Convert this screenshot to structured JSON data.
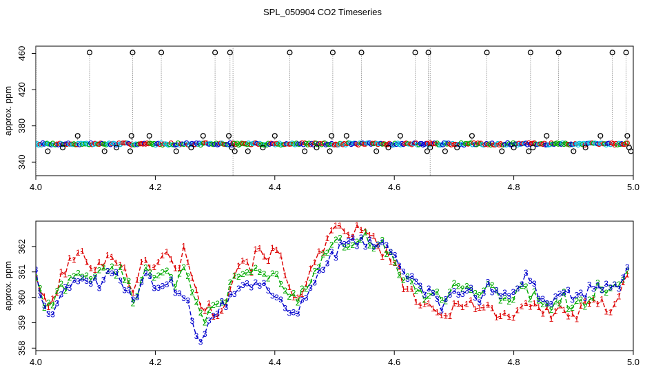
{
  "chart_data": [
    {
      "type": "scatter",
      "title": "SPL_050904  CO2 Timeseries",
      "xlabel": "",
      "ylabel": "approx. ppm",
      "xlim": [
        4.0,
        5.0
      ],
      "ylim": [
        325,
        468
      ],
      "x_ticks": [
        "4.0",
        "4.2",
        "4.4",
        "4.6",
        "4.8",
        "5.0"
      ],
      "y_ticks": [
        "340",
        "380",
        "420",
        "460"
      ],
      "baseline_ppm": 360,
      "spikes": [
        {
          "x": 4.02,
          "y": 352
        },
        {
          "x": 4.045,
          "y": 356
        },
        {
          "x": 4.07,
          "y": 369
        },
        {
          "x": 4.09,
          "y": 461
        },
        {
          "x": 4.115,
          "y": 352
        },
        {
          "x": 4.135,
          "y": 356
        },
        {
          "x": 4.158,
          "y": 352
        },
        {
          "x": 4.16,
          "y": 369
        },
        {
          "x": 4.162,
          "y": 461
        },
        {
          "x": 4.19,
          "y": 369
        },
        {
          "x": 4.21,
          "y": 461
        },
        {
          "x": 4.235,
          "y": 352
        },
        {
          "x": 4.26,
          "y": 356
        },
        {
          "x": 4.28,
          "y": 369
        },
        {
          "x": 4.3,
          "y": 461
        },
        {
          "x": 4.323,
          "y": 369
        },
        {
          "x": 4.325,
          "y": 461
        },
        {
          "x": 4.328,
          "y": 356
        },
        {
          "x": 4.333,
          "y": 352
        },
        {
          "x": 4.355,
          "y": 352
        },
        {
          "x": 4.38,
          "y": 356
        },
        {
          "x": 4.4,
          "y": 369
        },
        {
          "x": 4.425,
          "y": 461
        },
        {
          "x": 4.45,
          "y": 352
        },
        {
          "x": 4.47,
          "y": 356
        },
        {
          "x": 4.492,
          "y": 352
        },
        {
          "x": 4.495,
          "y": 369
        },
        {
          "x": 4.497,
          "y": 461
        },
        {
          "x": 4.52,
          "y": 369
        },
        {
          "x": 4.545,
          "y": 461
        },
        {
          "x": 4.57,
          "y": 352
        },
        {
          "x": 4.59,
          "y": 356
        },
        {
          "x": 4.61,
          "y": 369
        },
        {
          "x": 4.635,
          "y": 461
        },
        {
          "x": 4.655,
          "y": 352
        },
        {
          "x": 4.657,
          "y": 461
        },
        {
          "x": 4.66,
          "y": 356
        },
        {
          "x": 4.685,
          "y": 352
        },
        {
          "x": 4.705,
          "y": 356
        },
        {
          "x": 4.73,
          "y": 369
        },
        {
          "x": 4.755,
          "y": 461
        },
        {
          "x": 4.78,
          "y": 352
        },
        {
          "x": 4.8,
          "y": 356
        },
        {
          "x": 4.825,
          "y": 352
        },
        {
          "x": 4.828,
          "y": 461
        },
        {
          "x": 4.832,
          "y": 356
        },
        {
          "x": 4.855,
          "y": 369
        },
        {
          "x": 4.875,
          "y": 461
        },
        {
          "x": 4.9,
          "y": 352
        },
        {
          "x": 4.92,
          "y": 356
        },
        {
          "x": 4.945,
          "y": 369
        },
        {
          "x": 4.965,
          "y": 461
        },
        {
          "x": 4.988,
          "y": 461
        },
        {
          "x": 4.99,
          "y": 369
        },
        {
          "x": 4.993,
          "y": 356
        },
        {
          "x": 4.996,
          "y": 352
        }
      ]
    },
    {
      "type": "line",
      "xlabel": "",
      "ylabel": "approx. ppm",
      "xlim": [
        4.0,
        5.0
      ],
      "ylim": [
        357.9,
        363.0
      ],
      "x_ticks": [
        "4.0",
        "4.2",
        "4.4",
        "4.6",
        "4.8",
        "5.0"
      ],
      "y_ticks": [
        "358",
        "359",
        "360",
        "361",
        "362"
      ],
      "series": [
        {
          "name": "1",
          "color": "#dd0000",
          "marker": "1"
        },
        {
          "name": "2",
          "color": "#00aa00",
          "marker": "2"
        },
        {
          "name": "3",
          "color": "#0000cc",
          "marker": "3"
        }
      ],
      "anchors": {
        "x": [
          4.0,
          4.012,
          4.025,
          4.04,
          4.055,
          4.07,
          4.085,
          4.1,
          4.115,
          4.13,
          4.15,
          4.165,
          4.18,
          4.2,
          4.22,
          4.235,
          4.25,
          4.262,
          4.272,
          4.283,
          4.3,
          4.315,
          4.33,
          4.345,
          4.36,
          4.375,
          4.39,
          4.405,
          4.418,
          4.43,
          4.445,
          4.46,
          4.48,
          4.5,
          4.52,
          4.54,
          4.56,
          4.58,
          4.6,
          4.615,
          4.63,
          4.65,
          4.665,
          4.68,
          4.7,
          4.72,
          4.74,
          4.76,
          4.78,
          4.8,
          4.82,
          4.84,
          4.86,
          4.88,
          4.9,
          4.92,
          4.94,
          4.96,
          4.975,
          4.99
        ],
        "series_1": [
          361.0,
          359.8,
          359.6,
          360.7,
          361.3,
          361.7,
          361.5,
          361.3,
          361.4,
          361.6,
          361.2,
          360.0,
          361.5,
          361.3,
          361.7,
          361.0,
          362.0,
          360.9,
          359.8,
          359.6,
          359.4,
          359.8,
          360.8,
          361.6,
          361.2,
          362.0,
          361.6,
          361.9,
          360.7,
          360.1,
          360.3,
          361.0,
          361.8,
          362.6,
          362.6,
          362.6,
          362.4,
          361.8,
          361.3,
          360.6,
          360.1,
          359.6,
          359.4,
          359.2,
          359.6,
          360.0,
          359.5,
          359.6,
          359.2,
          359.4,
          359.8,
          359.6,
          359.3,
          359.6,
          359.2,
          359.6,
          359.8,
          359.5,
          360.2,
          361.0
        ],
        "series_2": [
          360.9,
          359.7,
          359.6,
          360.3,
          360.6,
          361.0,
          360.9,
          360.8,
          361.0,
          361.2,
          360.8,
          359.8,
          361.1,
          360.9,
          361.1,
          360.6,
          361.0,
          360.1,
          359.3,
          359.1,
          359.6,
          359.9,
          360.6,
          361.0,
          360.8,
          361.1,
          360.8,
          361.0,
          360.2,
          359.9,
          360.1,
          360.8,
          361.4,
          362.0,
          362.2,
          362.4,
          362.2,
          362.1,
          361.4,
          360.8,
          360.4,
          359.9,
          360.3,
          359.9,
          360.4,
          360.6,
          360.1,
          360.4,
          359.8,
          360.1,
          360.3,
          360.0,
          359.6,
          360.1,
          359.5,
          359.9,
          360.4,
          360.1,
          360.4,
          361.1
        ],
        "series_3": [
          361.2,
          359.6,
          359.5,
          359.9,
          360.3,
          360.8,
          360.6,
          360.5,
          360.7,
          360.9,
          360.5,
          359.6,
          360.8,
          360.5,
          360.7,
          360.1,
          360.2,
          359.3,
          358.3,
          358.6,
          359.4,
          359.8,
          360.2,
          360.5,
          360.3,
          360.6,
          360.2,
          360.1,
          359.6,
          359.3,
          359.8,
          360.4,
          361.0,
          361.8,
          362.0,
          362.1,
          362.1,
          362.2,
          361.8,
          361.0,
          360.6,
          360.3,
          360.0,
          359.6,
          360.1,
          360.3,
          359.9,
          360.5,
          360.0,
          360.4,
          360.7,
          360.2,
          359.8,
          360.3,
          359.9,
          360.2,
          360.6,
          360.3,
          360.5,
          361.2
        ]
      }
    }
  ]
}
